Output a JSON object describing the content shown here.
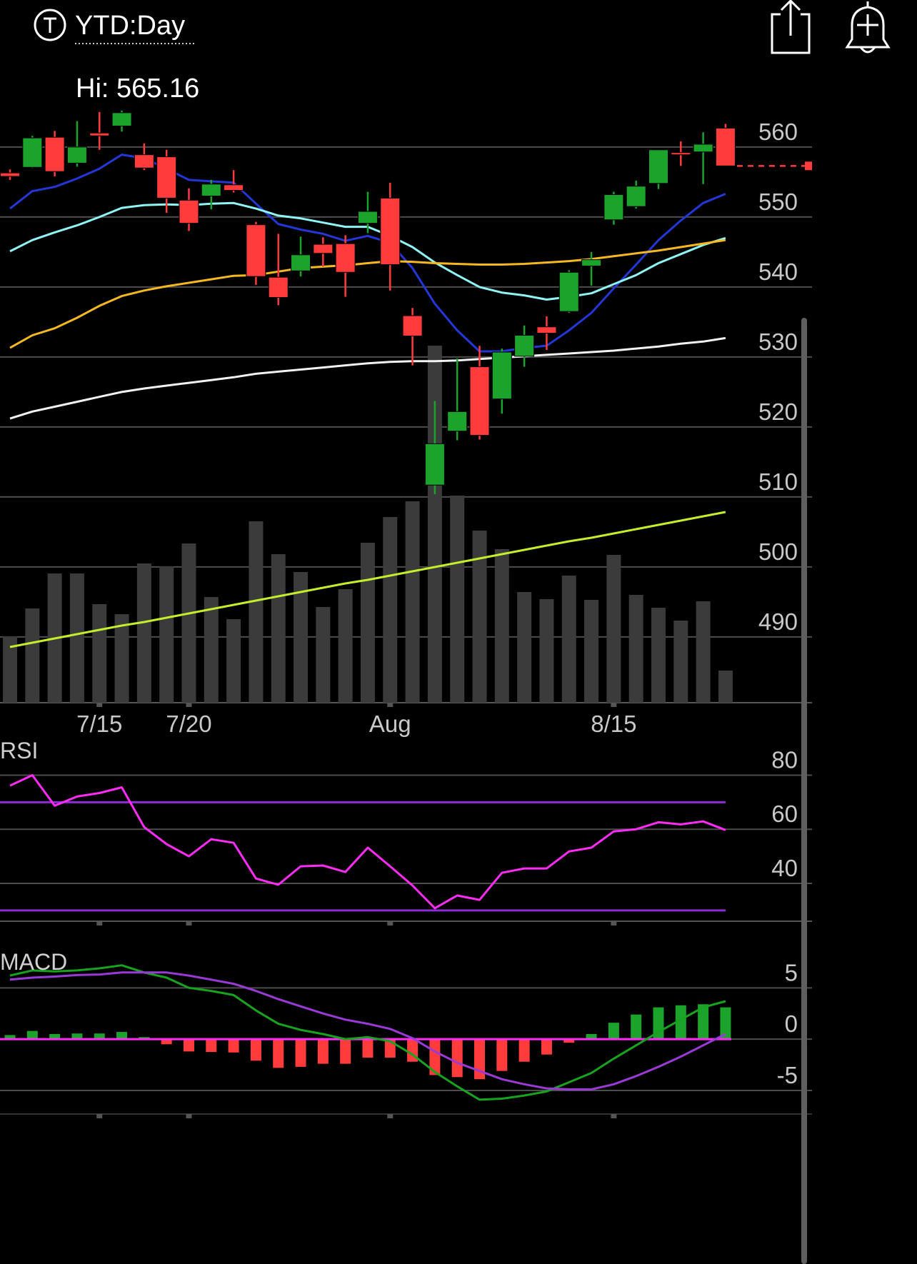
{
  "header": {
    "title": "YTD:Day",
    "high_label": "Hi: 565.16"
  },
  "chart_data": [
    {
      "type": "candlestick",
      "categories": [
        null,
        null,
        null,
        null,
        "7/15",
        null,
        null,
        null,
        "7/20",
        null,
        null,
        null,
        null,
        null,
        null,
        null,
        null,
        "Aug",
        null,
        null,
        null,
        null,
        null,
        null,
        null,
        null,
        null,
        "8/15",
        null,
        null,
        null,
        null,
        null
      ],
      "open": [
        556.3,
        557.1,
        561.4,
        557.7,
        562.0,
        563.0,
        558.9,
        558.6,
        552.4,
        553.0,
        554.6,
        548.9,
        541.4,
        542.3,
        546.1,
        546.2,
        549.1,
        552.7,
        535.9,
        511.7,
        519.4,
        528.6,
        524.0,
        530.1,
        534.3,
        536.5,
        543.0,
        549.6,
        551.5,
        554.8,
        559.2,
        559.3,
        562.7
      ],
      "high": [
        556.8,
        561.6,
        562.3,
        563.7,
        565.0,
        565.2,
        560.5,
        559.6,
        554.1,
        555.3,
        556.7,
        549.3,
        547.6,
        547.2,
        547.1,
        547.4,
        553.6,
        554.9,
        537.0,
        523.7,
        529.8,
        531.6,
        531.2,
        534.5,
        535.8,
        542.4,
        545.0,
        553.6,
        555.2,
        559.6,
        560.8,
        562.1,
        563.3
      ],
      "low": [
        555.3,
        557.0,
        555.8,
        557.2,
        559.6,
        562.2,
        556.7,
        550.6,
        548.0,
        551.1,
        553.5,
        540.3,
        537.4,
        541.5,
        542.9,
        538.6,
        547.7,
        539.5,
        528.8,
        510.4,
        518.1,
        518.2,
        521.9,
        528.6,
        531.0,
        536.3,
        540.2,
        548.9,
        551.2,
        554.0,
        557.3,
        554.7,
        557.3
      ],
      "close": [
        555.8,
        561.3,
        556.5,
        560.0,
        561.6,
        564.9,
        557.0,
        552.7,
        549.1,
        554.7,
        553.8,
        541.5,
        538.5,
        544.6,
        544.8,
        542.1,
        550.8,
        543.2,
        533.0,
        517.6,
        522.2,
        518.8,
        530.7,
        533.1,
        533.4,
        542.1,
        543.9,
        553.2,
        554.4,
        559.6,
        558.9,
        560.4,
        557.3
      ],
      "up_color": "#1ba32c",
      "down_color": "#ff3b3b",
      "ylim": [
        480.6,
        565.7
      ],
      "yticks": [
        490,
        500,
        510,
        520,
        530,
        540,
        550,
        560
      ],
      "grid": true,
      "series": [
        {
          "color": "#2436d6",
          "values": [
            551.2,
            553.7,
            554.3,
            555.5,
            556.9,
            558.9,
            558.4,
            556.9,
            555.3,
            555.1,
            554.9,
            551.9,
            549.0,
            548.2,
            547.6,
            546.6,
            547.3,
            546.3,
            542.7,
            537.6,
            533.8,
            530.8,
            530.8,
            531.3,
            531.6,
            533.8,
            536.3,
            539.8,
            543.2,
            546.7,
            549.5,
            552.0,
            553.3
          ]
        },
        {
          "color": "#8ff4f4",
          "values": [
            545.1,
            546.7,
            547.8,
            548.8,
            550.0,
            551.3,
            551.7,
            551.8,
            551.7,
            551.9,
            552.0,
            551.2,
            550.2,
            549.8,
            549.2,
            548.6,
            548.6,
            547.3,
            545.7,
            543.5,
            541.7,
            540.0,
            539.2,
            538.8,
            538.2,
            538.6,
            539.1,
            540.4,
            541.7,
            543.4,
            544.7,
            546.0,
            547.0
          ]
        },
        {
          "color": "#f5b820",
          "values": [
            531.3,
            533.1,
            534.1,
            535.6,
            537.3,
            538.7,
            539.5,
            540.1,
            540.6,
            541.1,
            541.6,
            541.7,
            542.2,
            542.7,
            542.9,
            543.1,
            543.4,
            543.7,
            543.6,
            543.4,
            543.3,
            543.2,
            543.2,
            543.3,
            543.5,
            543.7,
            544.0,
            544.4,
            544.8,
            545.2,
            545.7,
            546.2,
            546.7
          ]
        },
        {
          "color": "#f2f2f2",
          "values": [
            521.2,
            522.2,
            522.9,
            523.6,
            524.3,
            525.0,
            525.5,
            525.9,
            526.3,
            526.7,
            527.1,
            527.6,
            527.9,
            528.2,
            528.5,
            528.8,
            529.1,
            529.3,
            529.4,
            529.4,
            529.5,
            529.7,
            529.9,
            530.1,
            530.3,
            530.5,
            530.7,
            530.9,
            531.2,
            531.5,
            531.9,
            532.2,
            532.7
          ]
        }
      ],
      "volume": {
        "color": "#3b3b3b",
        "ylim": [
          0,
          834
        ],
        "values": [
          93,
          132,
          181,
          181,
          138,
          124,
          195,
          191,
          223,
          148,
          117,
          254,
          208,
          183,
          134,
          159,
          224,
          260,
          282,
          500,
          290,
          241,
          215,
          155,
          145,
          178,
          144,
          207,
          151,
          133,
          115,
          142,
          45
        ],
        "average": {
          "color": "#c4ee2c",
          "values": [
            78,
            84,
            90,
            96,
            102,
            108,
            113,
            119,
            125,
            131,
            137,
            143,
            149,
            155,
            161,
            167,
            172,
            178,
            184,
            190,
            196,
            202,
            208,
            214,
            220,
            226,
            231,
            237,
            243,
            249,
            255,
            261,
            267
          ]
        }
      }
    },
    {
      "type": "line",
      "title": "RSI",
      "ylim": [
        26,
        92
      ],
      "yticks": [
        40,
        60,
        80
      ],
      "grid": true,
      "reference_lines": [
        70,
        30
      ],
      "reference_color": "#8e2bd8",
      "series": [
        {
          "color": "#ff2cf5",
          "values": [
            76.1,
            80.0,
            68.7,
            72.1,
            73.4,
            75.5,
            60.8,
            54.5,
            50.0,
            56.3,
            55.0,
            41.8,
            39.5,
            46.3,
            46.6,
            44.2,
            53.2,
            46.3,
            39.2,
            30.8,
            35.5,
            33.9,
            43.9,
            45.5,
            45.5,
            51.8,
            53.2,
            59.2,
            60.0,
            62.6,
            61.8,
            62.9,
            59.7
          ]
        }
      ]
    },
    {
      "type": "macd",
      "title": "MACD",
      "ylim": [
        -7.3,
        10.8
      ],
      "yticks": [
        -5,
        0,
        5
      ],
      "grid": true,
      "zero_line_color": "#ff2cf5",
      "histogram": {
        "up_color": "#1ba32c",
        "down_color": "#ff3b3b",
        "values": [
          0.4,
          0.8,
          0.5,
          0.55,
          0.55,
          0.7,
          0.2,
          -0.5,
          -1.2,
          -1.25,
          -1.3,
          -2.1,
          -2.8,
          -2.7,
          -2.4,
          -2.4,
          -1.8,
          -1.8,
          -2.2,
          -3.5,
          -3.7,
          -3.9,
          -3.1,
          -2.2,
          -1.5,
          -0.35,
          0.5,
          1.6,
          2.4,
          3.1,
          3.3,
          3.4,
          3.1
        ]
      },
      "series": [
        {
          "color": "#17a31f",
          "values": [
            6.2,
            6.7,
            6.6,
            6.7,
            6.9,
            7.2,
            6.5,
            6.0,
            5.0,
            4.7,
            4.3,
            2.8,
            1.5,
            0.9,
            0.5,
            0,
            0.2,
            -0.2,
            -1.5,
            -3.2,
            -4.6,
            -5.9,
            -5.8,
            -5.5,
            -5.1,
            -4.2,
            -3.3,
            -1.9,
            -0.6,
            0.7,
            1.9,
            3.1,
            3.7
          ]
        },
        {
          "color": "#9a3ad6",
          "values": [
            5.8,
            6.0,
            6.1,
            6.25,
            6.3,
            6.5,
            6.5,
            6.5,
            6.2,
            5.8,
            5.4,
            4.7,
            3.9,
            3.2,
            2.5,
            1.9,
            1.5,
            1.0,
            0.1,
            -1.2,
            -2.3,
            -3.1,
            -3.9,
            -4.4,
            -4.8,
            -4.9,
            -4.9,
            -4.4,
            -3.6,
            -2.7,
            -1.7,
            -0.6,
            0.5
          ]
        }
      ]
    }
  ]
}
